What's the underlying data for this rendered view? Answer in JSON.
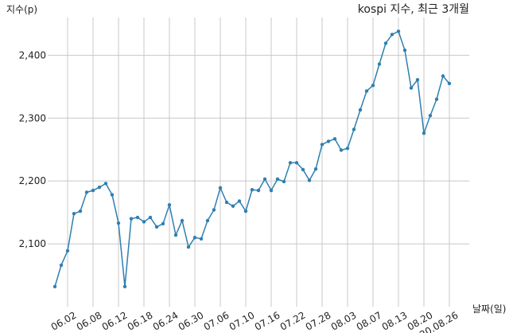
{
  "chart_data": {
    "type": "line",
    "title": "kospi 지수, 최근 3개월",
    "y_label": "지수(p)",
    "x_label": "날짜(일)",
    "categories": [
      null,
      null,
      "06.02",
      null,
      null,
      null,
      "06.08",
      null,
      null,
      null,
      "06.12",
      null,
      null,
      null,
      "06.18",
      null,
      null,
      null,
      "06.24",
      null,
      null,
      null,
      "06.30",
      null,
      null,
      null,
      "07.06",
      null,
      null,
      null,
      "07.10",
      null,
      null,
      null,
      "07.16",
      null,
      null,
      null,
      "07.22",
      null,
      null,
      null,
      "07.28",
      null,
      null,
      null,
      "08.03",
      null,
      null,
      null,
      "08.07",
      null,
      null,
      null,
      "08.13",
      null,
      null,
      null,
      "08.20",
      null,
      null,
      null,
      "20.08.26"
    ],
    "series": [
      {
        "name": "kospi",
        "color": "#2f7fb1",
        "values": [
          2032,
          2066,
          2089,
          2148,
          2152,
          2182,
          2185,
          2190,
          2196,
          2178,
          2133,
          2032,
          2140,
          2142,
          2135,
          2142,
          2127,
          2132,
          2162,
          2114,
          2137,
          2095,
          2110,
          2108,
          2137,
          2154,
          2189,
          2166,
          2160,
          2168,
          2152,
          2186,
          2185,
          2203,
          2185,
          2203,
          2199,
          2229,
          2229,
          2218,
          2201,
          2219,
          2258,
          2263,
          2267,
          2249,
          2252,
          2282,
          2313,
          2343,
          2352,
          2386,
          2419,
          2433,
          2438,
          2408,
          2348,
          2361,
          2276,
          2304,
          2330,
          2367,
          2355
        ]
      }
    ],
    "ylim": [
      2000,
      2460
    ],
    "yticks": [
      {
        "value": 2100,
        "label": "2,100"
      },
      {
        "value": 2200,
        "label": "2,200"
      },
      {
        "value": 2300,
        "label": "2,300"
      },
      {
        "value": 2400,
        "label": "2,400"
      }
    ],
    "grid": true
  }
}
